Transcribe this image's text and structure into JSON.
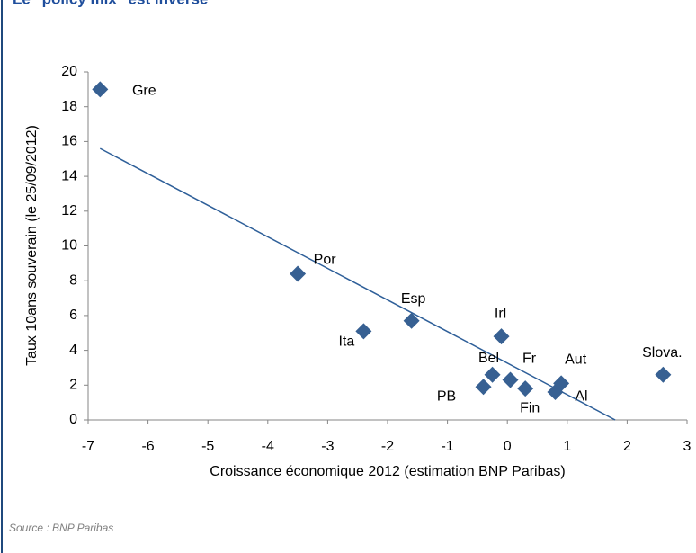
{
  "chart_data": {
    "type": "scatter",
    "title": "Le \"policy mix\" est inversé",
    "x_label": "Croissance économique 2012 (estimation BNP Paribas)",
    "y_label": "Taux 10ans souverain (le 25/09/2012)",
    "source": "Source : BNP Paribas",
    "series": [
      {
        "labels": [
          "Gre",
          "Por",
          "Ita",
          "Esp",
          "Irl",
          "Bel",
          "PB",
          "Fr",
          "Fin",
          "Aut",
          "Al",
          "Slova."
        ],
        "color": "#376092",
        "x": [
          -6.8,
          -3.5,
          -2.4,
          -1.6,
          -0.1,
          -0.25,
          -0.4,
          0.05,
          0.3,
          0.9,
          0.8,
          2.6
        ],
        "values": [
          19,
          8.4,
          5.1,
          5.7,
          4.8,
          2.6,
          1.9,
          2.3,
          1.8,
          2.1,
          1.6,
          2.6
        ]
      }
    ],
    "trendline": {
      "x": [
        -6.8,
        1.8
      ],
      "values": [
        15.6,
        0
      ],
      "color": "#2e5f99"
    },
    "xlim": [
      -7,
      3
    ],
    "xticks": [
      -7,
      -6,
      -5,
      -4,
      -3,
      -2,
      -1,
      0,
      1,
      2,
      3
    ],
    "ylim": [
      0,
      20
    ],
    "yticks": [
      0,
      2,
      4,
      6,
      8,
      10,
      12,
      14,
      16,
      18,
      20
    ]
  }
}
